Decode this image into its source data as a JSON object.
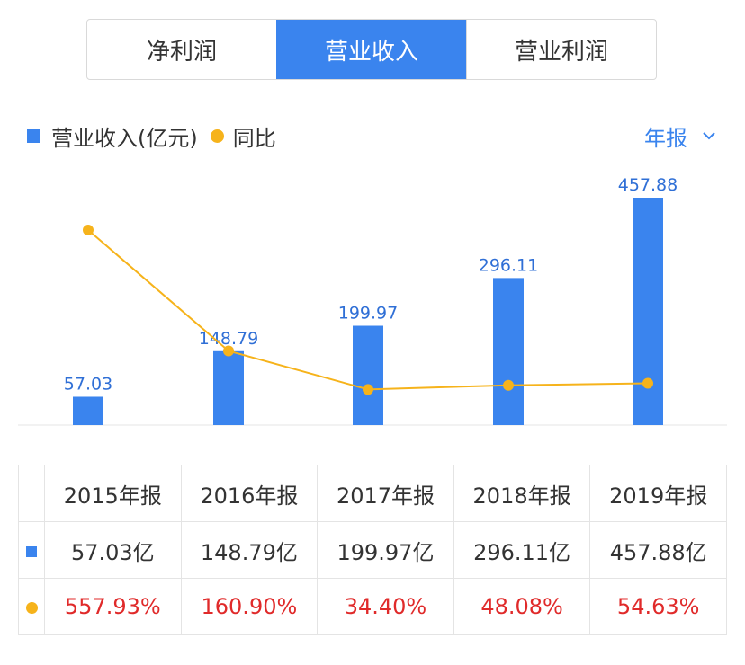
{
  "tabs": [
    {
      "label": "净利润",
      "active": false
    },
    {
      "label": "营业收入",
      "active": true
    },
    {
      "label": "营业利润",
      "active": false
    }
  ],
  "legend": {
    "bar_label": "营业收入(亿元)",
    "line_label": "同比"
  },
  "period_selector": {
    "label": "年报"
  },
  "colors": {
    "bar": "#3a84ee",
    "line": "#f6b31b",
    "negative_text": "#e02a2a"
  },
  "chart_data": {
    "type": "bar",
    "categories": [
      "2015年报",
      "2016年报",
      "2017年报",
      "2018年报",
      "2019年报"
    ],
    "series": [
      {
        "name": "营业收入(亿元)",
        "type": "bar",
        "values": [
          57.03,
          148.79,
          199.97,
          296.11,
          457.88
        ]
      },
      {
        "name": "同比",
        "type": "line",
        "values": [
          557.93,
          160.9,
          34.4,
          48.08,
          54.63
        ]
      }
    ],
    "bar_labels": [
      "57.03",
      "148.79",
      "199.97",
      "296.11",
      "457.88"
    ],
    "ylim": [
      0,
      457.88
    ],
    "y2lim": [
      0,
      557.93
    ]
  },
  "table": {
    "headers": [
      "2015年报",
      "2016年报",
      "2017年报",
      "2018年报",
      "2019年报"
    ],
    "revenue": [
      "57.03亿",
      "148.79亿",
      "199.97亿",
      "296.11亿",
      "457.88亿"
    ],
    "yoy": [
      "557.93%",
      "160.90%",
      "34.40%",
      "48.08%",
      "54.63%"
    ]
  }
}
